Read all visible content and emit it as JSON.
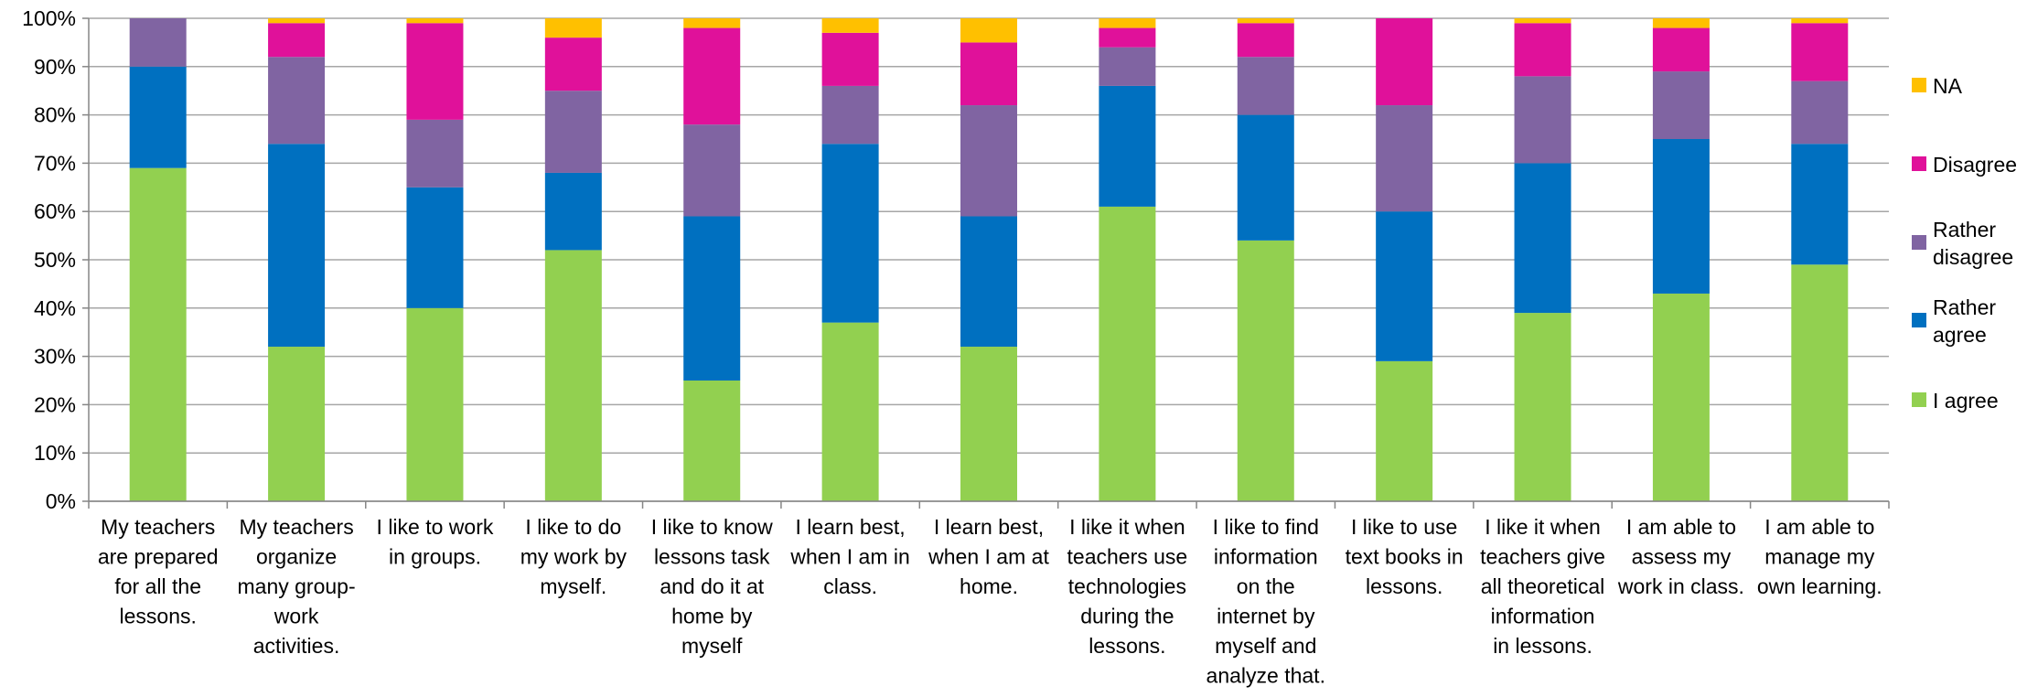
{
  "chart_data": {
    "type": "bar",
    "stacked": true,
    "categories": [
      [
        "My teachers",
        "are prepared",
        "for all the",
        "lessons."
      ],
      [
        "My teachers",
        "organize",
        "many group-",
        "work",
        "activities."
      ],
      [
        "I like to work",
        "in groups."
      ],
      [
        "I like to do",
        "my work by",
        "myself."
      ],
      [
        "I like to know",
        "lessons task",
        "and do it at",
        "home by",
        "myself"
      ],
      [
        "I learn best,",
        "when I am in",
        "class."
      ],
      [
        "I learn best,",
        "when I am at",
        "home."
      ],
      [
        "I like it when",
        "teachers use",
        "technologies",
        "during the",
        "lessons."
      ],
      [
        "I like to find",
        "information",
        "on the",
        "internet by",
        "myself and",
        "analyze that."
      ],
      [
        "I like to use",
        "text books in",
        "lessons."
      ],
      [
        "I like it when",
        "teachers give",
        "all theoretical",
        "information",
        "in lessons."
      ],
      [
        "I am able to",
        "assess my",
        "work in class."
      ],
      [
        "I am able to",
        "manage my",
        "own learning."
      ]
    ],
    "series": [
      {
        "name": "I agree",
        "color": "#92d050",
        "values": [
          69,
          32,
          40,
          52,
          25,
          37,
          32,
          61,
          54,
          29,
          39,
          43,
          49
        ]
      },
      {
        "name": "Rather agree",
        "color": "#0070c0",
        "values": [
          21,
          42,
          25,
          16,
          34,
          37,
          27,
          25,
          26,
          31,
          31,
          32,
          25
        ]
      },
      {
        "name": "Rather disagree",
        "color": "#8064a2",
        "values": [
          10,
          18,
          14,
          17,
          19,
          12,
          23,
          8,
          12,
          22,
          18,
          14,
          13
        ]
      },
      {
        "name": "Disagree",
        "color": "#e0119a",
        "values": [
          0,
          7,
          20,
          11,
          20,
          11,
          13,
          4,
          7,
          18,
          11,
          9,
          12
        ]
      },
      {
        "name": "NA",
        "color": "#ffc000",
        "values": [
          0,
          1,
          1,
          4,
          2,
          3,
          5,
          2,
          1,
          0,
          1,
          2,
          1
        ]
      }
    ],
    "legend_order": [
      "NA",
      "Disagree",
      "Rather disagree",
      "Rather agree",
      "I agree"
    ],
    "legend_lines": {
      "NA": [
        "NA"
      ],
      "Disagree": [
        "Disagree"
      ],
      "Rather disagree": [
        "Rather",
        "disagree"
      ],
      "Rather agree": [
        "Rather",
        "agree"
      ],
      "I agree": [
        "I agree"
      ]
    },
    "y_ticks": [
      "0%",
      "10%",
      "20%",
      "30%",
      "40%",
      "50%",
      "60%",
      "70%",
      "80%",
      "90%",
      "100%"
    ],
    "ylim": [
      0,
      100
    ],
    "grid": true,
    "legend_position": "right",
    "title": "",
    "xlabel": "",
    "ylabel": ""
  }
}
